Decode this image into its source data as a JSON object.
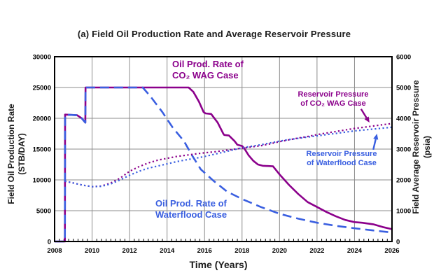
{
  "figure": {
    "title": "(a) Field Oil Production Rate and Average Reservoir Pressure",
    "x_axis_label": "Time (Years)",
    "y_left_label_line1": "Field Oil Production Rate",
    "y_left_label_line2": "(STB/DAY)",
    "y_right_label_line1": "Field Average Reservoir Pressure",
    "y_right_label_line2": "(psia)"
  },
  "annotations": {
    "wag_rate": {
      "line1": "Oil Prod. Rate of",
      "line2": "CO₂ WAG Case"
    },
    "wf_rate": {
      "line1": "Oil Prod. Rate of",
      "line2": "Waterflood Case"
    },
    "wag_press": {
      "line1": "Reservoir Pressure",
      "line2": "of CO₂ WAG Case"
    },
    "wf_press": {
      "line1": "Reservoir Pressure",
      "line2": "of Waterflood Case"
    }
  },
  "colors": {
    "wag": "#8B008B",
    "waterflood": "#3A5FE0",
    "grid": "#8C8C8C",
    "axis": "#000000",
    "text": "#1a1a1a"
  },
  "chart_data": {
    "type": "line",
    "title": "(a) Field Oil Production Rate and Average Reservoir Pressure",
    "xlabel": "Time (Years)",
    "ylabel_left": "Field Oil Production Rate (STB/DAY)",
    "ylabel_right": "Field Average Reservoir Pressure (psia)",
    "grid": true,
    "x_range": [
      2008,
      2026
    ],
    "x_ticks": [
      2008,
      2010,
      2012,
      2014,
      2016,
      2018,
      2020,
      2022,
      2024,
      2026
    ],
    "x_minor_tick_step": 0.25,
    "y_left_range": [
      0,
      30000
    ],
    "y_left_ticks": [
      0,
      5000,
      10000,
      15000,
      20000,
      25000,
      30000
    ],
    "y_right_range": [
      0,
      6000
    ],
    "y_right_ticks": [
      0,
      1000,
      2000,
      3000,
      4000,
      5000,
      6000
    ],
    "series": [
      {
        "name": "Oil Prod. Rate of CO2 WAG Case",
        "axis": "left",
        "style": "solid",
        "color_key": "wag",
        "width": 2.6,
        "points": [
          [
            2008.0,
            0
          ],
          [
            2008.55,
            0
          ],
          [
            2008.56,
            20600
          ],
          [
            2009.2,
            20500
          ],
          [
            2009.45,
            20000
          ],
          [
            2009.64,
            19300
          ],
          [
            2009.65,
            25000
          ],
          [
            2015.15,
            25000
          ],
          [
            2015.4,
            24300
          ],
          [
            2015.7,
            22700
          ],
          [
            2015.95,
            21000
          ],
          [
            2016.05,
            20800
          ],
          [
            2016.35,
            20700
          ],
          [
            2016.7,
            19300
          ],
          [
            2017.0,
            17500
          ],
          [
            2017.05,
            17300
          ],
          [
            2017.3,
            17200
          ],
          [
            2017.6,
            16300
          ],
          [
            2017.75,
            15700
          ],
          [
            2018.0,
            15500
          ],
          [
            2018.1,
            15200
          ],
          [
            2018.35,
            14000
          ],
          [
            2018.6,
            13100
          ],
          [
            2018.85,
            12500
          ],
          [
            2019.1,
            12300
          ],
          [
            2019.65,
            12200
          ],
          [
            2020.0,
            10900
          ],
          [
            2020.5,
            9200
          ],
          [
            2021.0,
            7700
          ],
          [
            2021.5,
            6400
          ],
          [
            2022.0,
            5600
          ],
          [
            2022.5,
            4800
          ],
          [
            2023.0,
            4100
          ],
          [
            2023.5,
            3500
          ],
          [
            2024.0,
            3150
          ],
          [
            2024.4,
            3050
          ],
          [
            2025.0,
            2800
          ],
          [
            2025.5,
            2350
          ],
          [
            2026.0,
            2000
          ]
        ]
      },
      {
        "name": "Oil Prod. Rate of Waterflood Case",
        "axis": "left",
        "style": "dashed",
        "color_key": "waterflood",
        "width": 2.6,
        "points": [
          [
            2008.0,
            0
          ],
          [
            2008.55,
            0
          ],
          [
            2008.56,
            20600
          ],
          [
            2009.2,
            20500
          ],
          [
            2009.45,
            20000
          ],
          [
            2009.64,
            19300
          ],
          [
            2009.65,
            25000
          ],
          [
            2012.7,
            25000
          ],
          [
            2013.1,
            23600
          ],
          [
            2013.75,
            21000
          ],
          [
            2014.3,
            18500
          ],
          [
            2014.9,
            16300
          ],
          [
            2015.35,
            13900
          ],
          [
            2015.8,
            11700
          ],
          [
            2016.5,
            9800
          ],
          [
            2017.2,
            8100
          ],
          [
            2018.0,
            6900
          ],
          [
            2019.0,
            5600
          ],
          [
            2020.0,
            4500
          ],
          [
            2021.0,
            3700
          ],
          [
            2022.0,
            3050
          ],
          [
            2023.0,
            2550
          ],
          [
            2024.0,
            2150
          ],
          [
            2025.0,
            1800
          ],
          [
            2026.0,
            1450
          ]
        ]
      },
      {
        "name": "Reservoir Pressure of CO2 WAG Case",
        "axis": "right",
        "style": "dotted",
        "color_key": "wag",
        "width": 2.2,
        "points": [
          [
            2008.55,
            1960
          ],
          [
            2009.0,
            1900
          ],
          [
            2009.5,
            1830
          ],
          [
            2010.0,
            1780
          ],
          [
            2010.5,
            1800
          ],
          [
            2011.0,
            1900
          ],
          [
            2011.5,
            2060
          ],
          [
            2012.0,
            2280
          ],
          [
            2012.5,
            2430
          ],
          [
            2013.0,
            2550
          ],
          [
            2013.5,
            2640
          ],
          [
            2014.0,
            2700
          ],
          [
            2014.5,
            2760
          ],
          [
            2015.0,
            2800
          ],
          [
            2015.5,
            2840
          ],
          [
            2016.0,
            2880
          ],
          [
            2016.5,
            2910
          ],
          [
            2017.0,
            2950
          ],
          [
            2017.5,
            2990
          ],
          [
            2018.0,
            3030
          ],
          [
            2018.5,
            3070
          ],
          [
            2019.0,
            3110
          ],
          [
            2019.5,
            3170
          ],
          [
            2020.0,
            3240
          ],
          [
            2020.5,
            3300
          ],
          [
            2021.0,
            3360
          ],
          [
            2021.5,
            3410
          ],
          [
            2022.0,
            3470
          ],
          [
            2022.5,
            3520
          ],
          [
            2023.0,
            3570
          ],
          [
            2023.5,
            3620
          ],
          [
            2024.0,
            3670
          ],
          [
            2024.5,
            3710
          ],
          [
            2025.0,
            3750
          ],
          [
            2025.5,
            3790
          ],
          [
            2026.0,
            3830
          ]
        ]
      },
      {
        "name": "Reservoir Pressure of Waterflood Case",
        "axis": "right",
        "style": "dotted",
        "color_key": "waterflood",
        "width": 2.2,
        "points": [
          [
            2008.55,
            1960
          ],
          [
            2009.0,
            1900
          ],
          [
            2009.5,
            1830
          ],
          [
            2010.0,
            1780
          ],
          [
            2010.5,
            1790
          ],
          [
            2011.0,
            1870
          ],
          [
            2011.5,
            2000
          ],
          [
            2012.0,
            2150
          ],
          [
            2012.5,
            2280
          ],
          [
            2013.0,
            2380
          ],
          [
            2013.5,
            2450
          ],
          [
            2014.0,
            2520
          ],
          [
            2014.5,
            2590
          ],
          [
            2015.0,
            2650
          ],
          [
            2015.5,
            2700
          ],
          [
            2016.0,
            2760
          ],
          [
            2016.5,
            2830
          ],
          [
            2017.0,
            2900
          ],
          [
            2017.5,
            2970
          ],
          [
            2018.0,
            3040
          ],
          [
            2018.5,
            3090
          ],
          [
            2019.0,
            3140
          ],
          [
            2019.5,
            3200
          ],
          [
            2020.0,
            3260
          ],
          [
            2020.5,
            3310
          ],
          [
            2021.0,
            3350
          ],
          [
            2021.5,
            3390
          ],
          [
            2022.0,
            3430
          ],
          [
            2022.5,
            3470
          ],
          [
            2023.0,
            3510
          ],
          [
            2023.5,
            3550
          ],
          [
            2024.0,
            3590
          ],
          [
            2024.5,
            3620
          ],
          [
            2025.0,
            3650
          ],
          [
            2025.5,
            3680
          ],
          [
            2026.0,
            3710
          ]
        ]
      }
    ],
    "arrows": [
      {
        "name": "arrow-to-wag-pressure",
        "axis": "right",
        "color_key": "wag",
        "from": [
          2024.35,
          4300
        ],
        "to": [
          2024.8,
          3860
        ]
      },
      {
        "name": "arrow-to-waterflood-pressure",
        "axis": "right",
        "color_key": "waterflood",
        "from": [
          2025.0,
          2980
        ],
        "to": [
          2025.2,
          3500
        ]
      }
    ]
  }
}
